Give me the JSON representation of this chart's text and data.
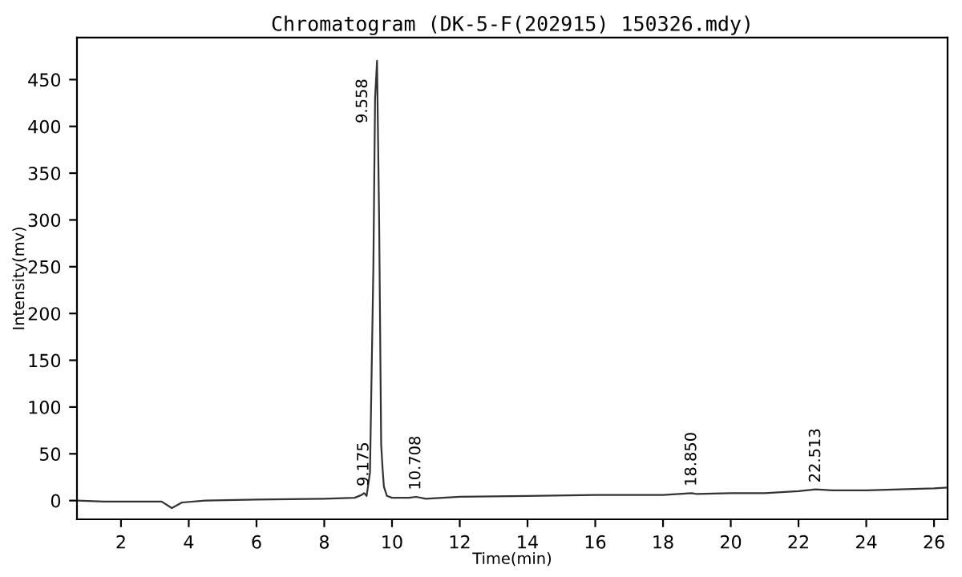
{
  "chart_data": {
    "type": "line",
    "title": "Chromatogram (DK-5-F(202915) 150326.mdy)",
    "xlabel": "Time(min)",
    "ylabel": "Intensity(mv)",
    "x": [
      0.7,
      1.5,
      2.5,
      3.2,
      3.5,
      3.8,
      4.5,
      6,
      8,
      8.9,
      9.1,
      9.175,
      9.25,
      9.35,
      9.45,
      9.5,
      9.558,
      9.62,
      9.68,
      9.72,
      9.76,
      9.85,
      10,
      10.5,
      10.708,
      11,
      12,
      14,
      16,
      18,
      18.85,
      19,
      20,
      21,
      22,
      22.513,
      23,
      24,
      25,
      26,
      26.4
    ],
    "series": [
      {
        "color": "#333333",
        "values": [
          0,
          -1,
          -1,
          -1,
          -8,
          -2,
          0,
          1,
          2,
          3,
          6,
          8,
          5,
          30,
          250,
          430,
          470,
          300,
          60,
          35,
          15,
          5,
          3,
          3,
          4,
          2,
          4,
          5,
          6,
          6,
          8,
          7,
          8,
          8,
          10,
          12,
          11,
          11,
          12,
          13,
          14
        ]
      }
    ],
    "xlim": [
      0.7,
      26.4
    ],
    "ylim": [
      -20,
      495
    ],
    "xticks": [
      2,
      4,
      6,
      8,
      10,
      12,
      14,
      16,
      18,
      20,
      22,
      24,
      26
    ],
    "yticks": [
      0,
      50,
      100,
      150,
      200,
      250,
      300,
      350,
      400,
      450
    ],
    "grid": false,
    "legend": false,
    "annotations": [
      {
        "text": "9.175",
        "x": 9.175,
        "y": 8
      },
      {
        "text": "9.558",
        "x": 9.558,
        "y": 470
      },
      {
        "text": "10.708",
        "x": 10.708,
        "y": 4
      },
      {
        "text": "18.850",
        "x": 18.85,
        "y": 8
      },
      {
        "text": "22.513",
        "x": 22.513,
        "y": 12
      }
    ]
  }
}
